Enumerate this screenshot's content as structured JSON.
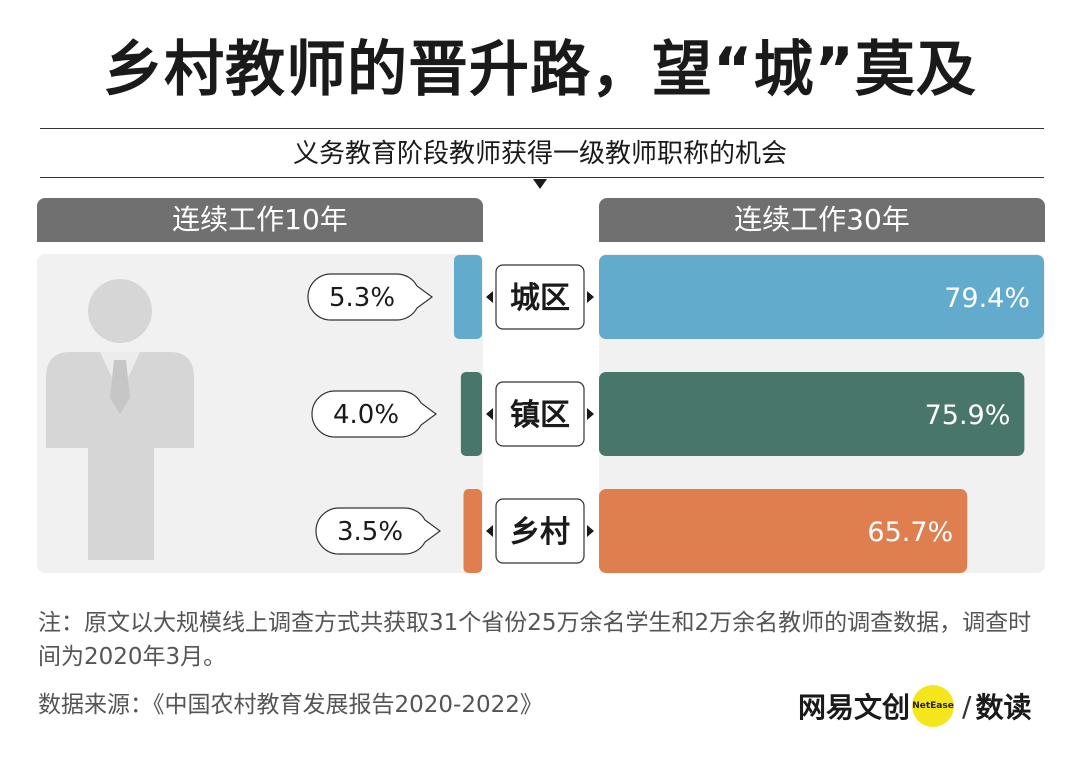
{
  "title": "乡村教师的晋升路，望“城”莫及",
  "subtitle": "义务教育阶段教师获得一级教师职称的机会",
  "panels": {
    "left_header": "连续工作10年",
    "right_header": "连续工作30年"
  },
  "chart_data": {
    "type": "bar",
    "categories": [
      "城区",
      "镇区",
      "乡村"
    ],
    "series": [
      {
        "name": "连续工作10年",
        "values": [
          5.3,
          4.0,
          3.5
        ],
        "labels": [
          "5.3%",
          "4.0%",
          "3.5%"
        ]
      },
      {
        "name": "连续工作30年",
        "values": [
          79.4,
          75.9,
          65.7
        ],
        "labels": [
          "79.4%",
          "75.9%",
          "65.7%"
        ]
      }
    ],
    "colors": [
      "#62abcc",
      "#49766a",
      "#df7f50"
    ],
    "xlim": [
      0,
      79.4
    ],
    "unit": "%"
  },
  "footer": {
    "note": "注：原文以大规模线上调查方式共获取31个省份25万余名学生和2万余名教师的调查数据，调查时间为2020年3月。",
    "source": "数据来源：《中国农村教育发展报告2020-2022》"
  },
  "brand": {
    "name": "网易文创",
    "badge": "NetEase",
    "separator": "/",
    "product": "数读"
  }
}
